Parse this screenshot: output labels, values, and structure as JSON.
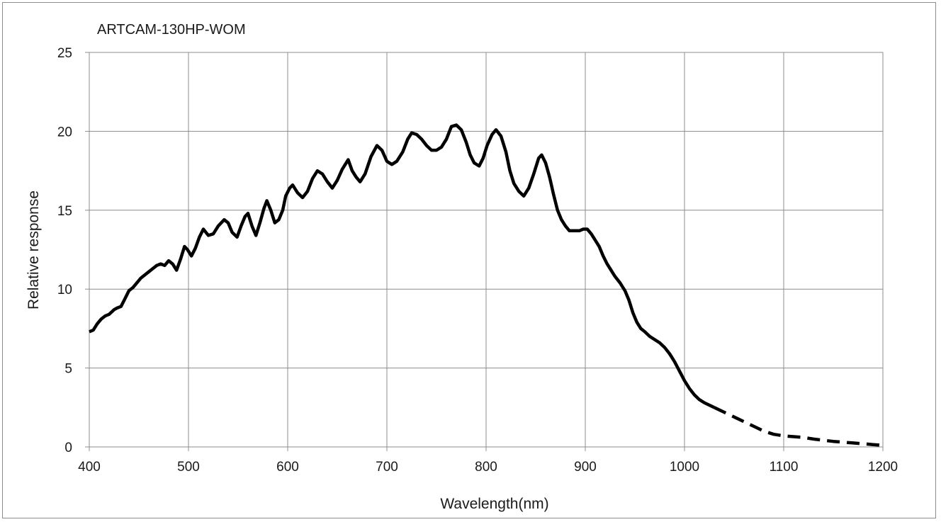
{
  "chart_data": {
    "type": "line",
    "title": "ARTCAM-130HP-WOM",
    "xlabel": "Wavelength(nm)",
    "ylabel": "Relative  response",
    "xlim": [
      400,
      1200
    ],
    "ylim": [
      0,
      25
    ],
    "x_ticks": [
      400,
      500,
      600,
      700,
      800,
      900,
      1000,
      1100,
      1200
    ],
    "y_ticks": [
      0,
      5,
      10,
      15,
      20,
      25
    ],
    "x_tick_labels": [
      "400",
      "500",
      "600",
      "700",
      "800",
      "900",
      "1000",
      "1100",
      "1200"
    ],
    "y_tick_labels": [
      "0",
      "5",
      "10",
      "15",
      "20",
      "25"
    ],
    "grid": true,
    "legend": "none",
    "line_color": "#000000",
    "series": [
      {
        "style": "solid",
        "points": [
          [
            400,
            7.3
          ],
          [
            404,
            7.4
          ],
          [
            408,
            7.8
          ],
          [
            412,
            8.1
          ],
          [
            416,
            8.3
          ],
          [
            420,
            8.4
          ],
          [
            425,
            8.7
          ],
          [
            428,
            8.8
          ],
          [
            432,
            8.9
          ],
          [
            436,
            9.4
          ],
          [
            440,
            9.9
          ],
          [
            444,
            10.1
          ],
          [
            448,
            10.4
          ],
          [
            452,
            10.7
          ],
          [
            456,
            10.9
          ],
          [
            460,
            11.1
          ],
          [
            464,
            11.3
          ],
          [
            468,
            11.5
          ],
          [
            472,
            11.6
          ],
          [
            476,
            11.5
          ],
          [
            480,
            11.8
          ],
          [
            484,
            11.6
          ],
          [
            488,
            11.2
          ],
          [
            492,
            11.9
          ],
          [
            496,
            12.7
          ],
          [
            499,
            12.5
          ],
          [
            503,
            12.1
          ],
          [
            507,
            12.6
          ],
          [
            511,
            13.3
          ],
          [
            515,
            13.8
          ],
          [
            520,
            13.4
          ],
          [
            525,
            13.5
          ],
          [
            530,
            14.0
          ],
          [
            536,
            14.4
          ],
          [
            540,
            14.2
          ],
          [
            544,
            13.6
          ],
          [
            549,
            13.3
          ],
          [
            553,
            14.0
          ],
          [
            557,
            14.6
          ],
          [
            560,
            14.8
          ],
          [
            564,
            14.0
          ],
          [
            568,
            13.4
          ],
          [
            572,
            14.2
          ],
          [
            576,
            15.1
          ],
          [
            579,
            15.6
          ],
          [
            583,
            15.0
          ],
          [
            587,
            14.2
          ],
          [
            591,
            14.4
          ],
          [
            595,
            15.0
          ],
          [
            598,
            15.9
          ],
          [
            602,
            16.4
          ],
          [
            605,
            16.6
          ],
          [
            610,
            16.1
          ],
          [
            615,
            15.8
          ],
          [
            620,
            16.2
          ],
          [
            625,
            17.0
          ],
          [
            630,
            17.5
          ],
          [
            635,
            17.3
          ],
          [
            640,
            16.8
          ],
          [
            645,
            16.4
          ],
          [
            650,
            16.9
          ],
          [
            655,
            17.6
          ],
          [
            661,
            18.2
          ],
          [
            665,
            17.5
          ],
          [
            669,
            17.1
          ],
          [
            673,
            16.8
          ],
          [
            678,
            17.3
          ],
          [
            684,
            18.4
          ],
          [
            690,
            19.1
          ],
          [
            695,
            18.8
          ],
          [
            700,
            18.1
          ],
          [
            705,
            17.9
          ],
          [
            710,
            18.1
          ],
          [
            716,
            18.7
          ],
          [
            721,
            19.5
          ],
          [
            725,
            19.9
          ],
          [
            730,
            19.8
          ],
          [
            735,
            19.5
          ],
          [
            740,
            19.1
          ],
          [
            745,
            18.8
          ],
          [
            750,
            18.8
          ],
          [
            755,
            19.0
          ],
          [
            760,
            19.5
          ],
          [
            765,
            20.3
          ],
          [
            770,
            20.4
          ],
          [
            775,
            20.1
          ],
          [
            780,
            19.3
          ],
          [
            784,
            18.5
          ],
          [
            788,
            18.0
          ],
          [
            793,
            17.8
          ],
          [
            797,
            18.3
          ],
          [
            801,
            19.1
          ],
          [
            806,
            19.8
          ],
          [
            810,
            20.1
          ],
          [
            815,
            19.7
          ],
          [
            820,
            18.7
          ],
          [
            824,
            17.5
          ],
          [
            828,
            16.7
          ],
          [
            833,
            16.2
          ],
          [
            838,
            15.9
          ],
          [
            843,
            16.4
          ],
          [
            848,
            17.3
          ],
          [
            853,
            18.3
          ],
          [
            856,
            18.5
          ],
          [
            860,
            18.0
          ],
          [
            864,
            17.1
          ],
          [
            868,
            16.0
          ],
          [
            872,
            15.0
          ],
          [
            876,
            14.4
          ],
          [
            880,
            14.0
          ],
          [
            884,
            13.7
          ],
          [
            888,
            13.7
          ],
          [
            894,
            13.7
          ],
          [
            898,
            13.8
          ],
          [
            902,
            13.8
          ],
          [
            906,
            13.5
          ],
          [
            910,
            13.1
          ],
          [
            914,
            12.7
          ],
          [
            918,
            12.1
          ],
          [
            922,
            11.6
          ],
          [
            926,
            11.2
          ],
          [
            930,
            10.8
          ],
          [
            935,
            10.4
          ],
          [
            940,
            9.9
          ],
          [
            944,
            9.3
          ],
          [
            948,
            8.5
          ],
          [
            952,
            7.9
          ],
          [
            956,
            7.5
          ],
          [
            960,
            7.3
          ],
          [
            965,
            7.0
          ],
          [
            970,
            6.8
          ],
          [
            975,
            6.6
          ],
          [
            980,
            6.3
          ],
          [
            985,
            5.9
          ],
          [
            990,
            5.4
          ],
          [
            995,
            4.8
          ],
          [
            1000,
            4.2
          ],
          [
            1005,
            3.7
          ],
          [
            1010,
            3.3
          ],
          [
            1015,
            3.0
          ],
          [
            1020,
            2.8
          ],
          [
            1030,
            2.5
          ]
        ]
      },
      {
        "style": "dashed",
        "points": [
          [
            1030,
            2.5
          ],
          [
            1040,
            2.2
          ],
          [
            1050,
            1.9
          ],
          [
            1060,
            1.6
          ],
          [
            1070,
            1.3
          ],
          [
            1080,
            1.0
          ],
          [
            1090,
            0.8
          ],
          [
            1100,
            0.7
          ],
          [
            1110,
            0.65
          ],
          [
            1120,
            0.6
          ],
          [
            1130,
            0.5
          ],
          [
            1140,
            0.42
          ],
          [
            1150,
            0.35
          ],
          [
            1160,
            0.3
          ],
          [
            1170,
            0.25
          ],
          [
            1180,
            0.2
          ],
          [
            1190,
            0.15
          ],
          [
            1200,
            0.1
          ]
        ]
      }
    ]
  }
}
